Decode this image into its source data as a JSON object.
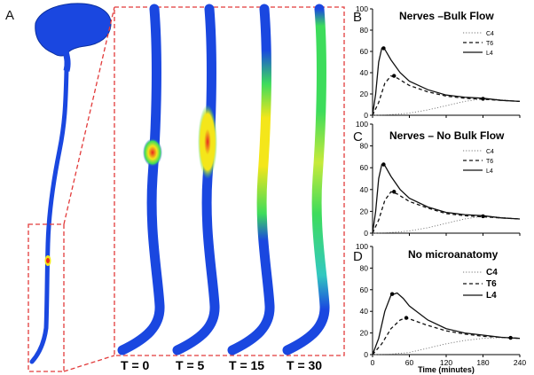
{
  "figure": {
    "panel_a_letter": "A",
    "time_labels": [
      "T = 0",
      "T = 5",
      "T = 15",
      "T = 30"
    ]
  },
  "colors": {
    "tissue_blue": "#1a47e0",
    "dash_red": "#e23b3b",
    "heat_green": "#3ddc5b",
    "heat_yellow": "#f4e61a",
    "heat_red": "#e8281e"
  },
  "chart_data": [
    {
      "type": "line",
      "panel": "B",
      "title": "Nerves –Bulk Flow",
      "xlabel": "",
      "ylabel": "",
      "xlim": [
        0,
        240
      ],
      "ylim": [
        0,
        100
      ],
      "yticks": [
        "0",
        "20",
        "40",
        "60",
        "80",
        "100"
      ],
      "xticks": [
        "0",
        "60",
        "120",
        "180",
        "240"
      ],
      "show_xticks": false,
      "legend_small": true,
      "series": [
        {
          "name": "C4",
          "style": "dotted",
          "x": [
            0,
            20,
            40,
            60,
            90,
            120,
            150,
            180,
            200,
            220,
            240
          ],
          "y": [
            0,
            0.3,
            1,
            2,
            5,
            9,
            13,
            15.5,
            15,
            14,
            13
          ]
        },
        {
          "name": "T6",
          "style": "dashed",
          "x": [
            0,
            10,
            20,
            30,
            40,
            60,
            90,
            120,
            150,
            180,
            210,
            240
          ],
          "y": [
            0,
            12,
            30,
            37,
            35,
            28,
            22,
            18,
            16,
            15,
            14,
            13
          ]
        },
        {
          "name": "L4",
          "style": "solid",
          "x": [
            0,
            5,
            10,
            15,
            20,
            30,
            45,
            60,
            90,
            120,
            150,
            180,
            210,
            240
          ],
          "y": [
            0,
            20,
            50,
            63,
            62,
            52,
            40,
            32,
            24,
            19,
            17,
            16,
            14,
            13
          ]
        }
      ],
      "markers": [
        {
          "x": 18,
          "y": 63
        },
        {
          "x": 35,
          "y": 37
        },
        {
          "x": 180,
          "y": 15.5
        }
      ]
    },
    {
      "type": "line",
      "panel": "C",
      "title": "Nerves – No Bulk Flow",
      "xlabel": "",
      "ylabel": "",
      "xlim": [
        0,
        240
      ],
      "ylim": [
        0,
        100
      ],
      "yticks": [
        "0",
        "20",
        "40",
        "60",
        "80",
        "100"
      ],
      "xticks": [
        "0",
        "60",
        "120",
        "180",
        "240"
      ],
      "show_xticks": false,
      "legend_small": true,
      "series": [
        {
          "name": "C4",
          "style": "dotted",
          "x": [
            0,
            20,
            40,
            60,
            90,
            120,
            150,
            180,
            200,
            220,
            240
          ],
          "y": [
            0,
            0.3,
            1,
            2,
            5,
            9,
            13,
            15.5,
            15,
            14,
            13
          ]
        },
        {
          "name": "T6",
          "style": "dashed",
          "x": [
            0,
            10,
            20,
            30,
            40,
            60,
            90,
            120,
            150,
            180,
            210,
            240
          ],
          "y": [
            0,
            12,
            30,
            38,
            36,
            29,
            23,
            18,
            16,
            15,
            14,
            13
          ]
        },
        {
          "name": "L4",
          "style": "solid",
          "x": [
            0,
            5,
            10,
            15,
            20,
            30,
            45,
            60,
            90,
            120,
            150,
            180,
            210,
            240
          ],
          "y": [
            0,
            20,
            50,
            63,
            62,
            52,
            40,
            32,
            24,
            19,
            17,
            16,
            14,
            13
          ]
        }
      ],
      "markers": [
        {
          "x": 18,
          "y": 63
        },
        {
          "x": 35,
          "y": 38
        },
        {
          "x": 180,
          "y": 15.5
        }
      ]
    },
    {
      "type": "line",
      "panel": "D",
      "title": "No microanatomy",
      "xlabel": "Time (minutes)",
      "ylabel": "",
      "xlim": [
        0,
        240
      ],
      "ylim": [
        0,
        100
      ],
      "yticks": [
        "0",
        "20",
        "40",
        "60",
        "80",
        "100"
      ],
      "xticks": [
        "0",
        "60",
        "120",
        "180",
        "240"
      ],
      "show_xticks": true,
      "legend_small": false,
      "series": [
        {
          "name": "C4",
          "style": "dotted",
          "x": [
            0,
            30,
            60,
            90,
            120,
            150,
            180,
            200,
            220,
            240
          ],
          "y": [
            0,
            0.5,
            2,
            6,
            10,
            13,
            15,
            15.5,
            15.5,
            15
          ]
        },
        {
          "name": "T6",
          "style": "dashed",
          "x": [
            0,
            15,
            30,
            45,
            55,
            60,
            90,
            120,
            150,
            180,
            210,
            240
          ],
          "y": [
            0,
            10,
            24,
            32,
            34,
            33,
            27,
            22,
            19,
            17,
            16,
            15
          ]
        },
        {
          "name": "L4",
          "style": "solid",
          "x": [
            0,
            10,
            20,
            30,
            40,
            50,
            60,
            90,
            120,
            150,
            180,
            210,
            240
          ],
          "y": [
            0,
            15,
            40,
            55,
            57,
            52,
            45,
            32,
            24,
            20,
            18,
            16,
            15
          ]
        }
      ],
      "markers": [
        {
          "x": 32,
          "y": 56
        },
        {
          "x": 55,
          "y": 34
        },
        {
          "x": 225,
          "y": 15.5
        }
      ]
    }
  ]
}
